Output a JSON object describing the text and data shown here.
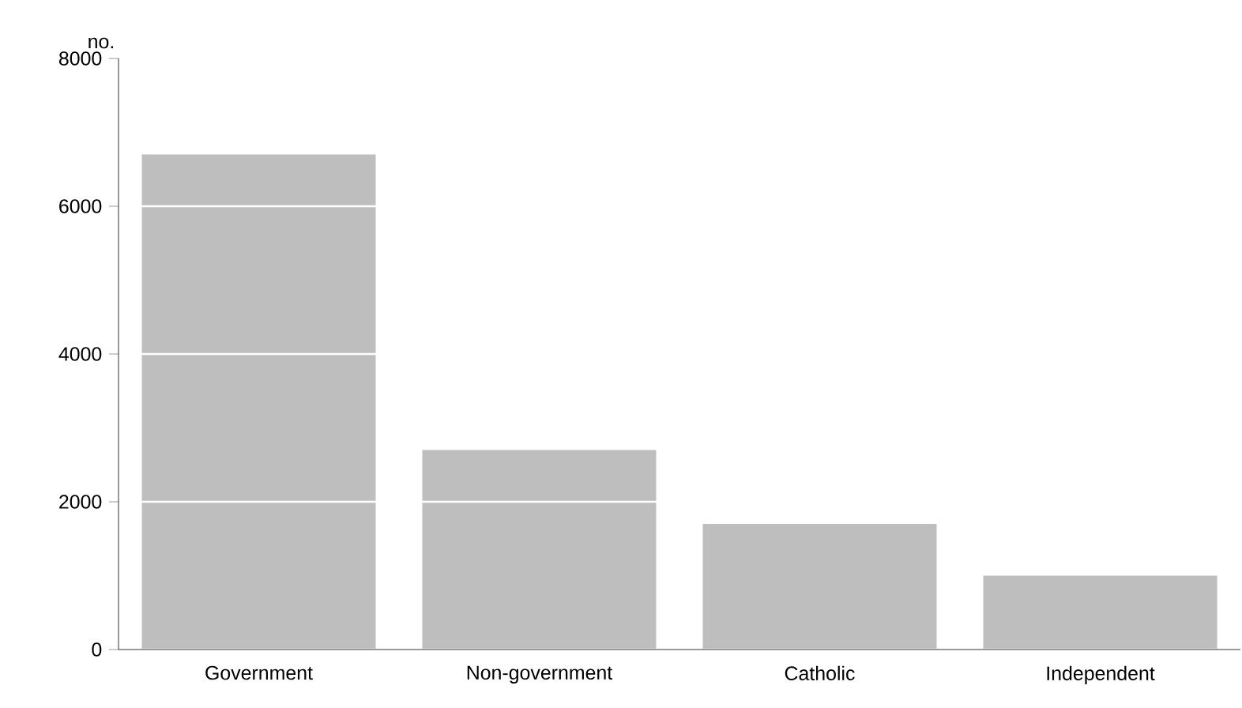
{
  "chart_data": {
    "type": "bar",
    "ylabel": "no.",
    "categories": [
      "Government",
      "Non-government",
      "Catholic",
      "Independent"
    ],
    "values": [
      6700,
      2700,
      1700,
      1000
    ],
    "color": "#bebebe",
    "ylim": [
      0,
      8000
    ],
    "yticks": [
      0,
      2000,
      4000,
      6000,
      8000
    ],
    "grid": "y"
  }
}
